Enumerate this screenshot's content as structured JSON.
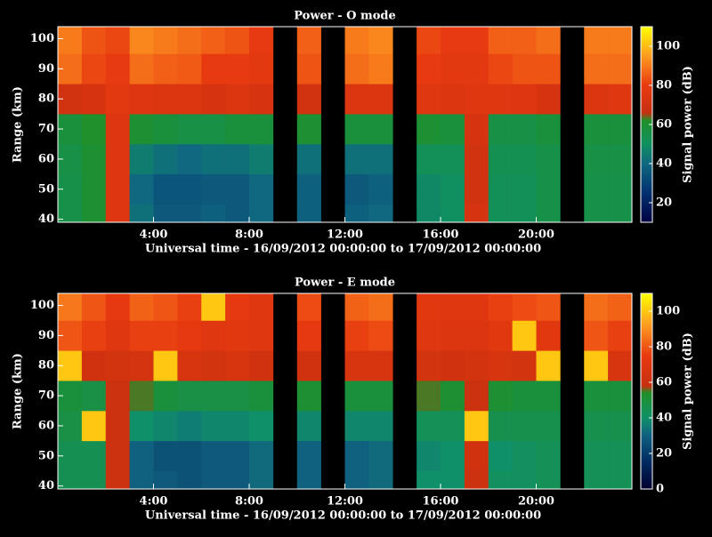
{
  "chart_data": [
    {
      "type": "heatmap",
      "title": "Power - O mode",
      "x_label": "Universal time - 16/09/2012 00:00:00 to 17/09/2012 00:00:00",
      "y_label": "Range (km)",
      "colorbar_label": "Signal power (dB)",
      "x_bins": [
        0,
        1,
        2,
        3,
        4,
        5,
        6,
        7,
        8,
        9,
        10,
        11,
        12,
        13,
        14,
        15,
        16,
        17,
        18,
        19,
        20,
        21,
        22,
        23,
        24
      ],
      "y_bins": [
        39,
        45,
        55,
        65,
        75,
        85,
        95,
        104
      ],
      "values": [
        [
          55,
          60,
          75,
          42,
          36,
          36,
          38,
          36,
          40,
          null,
          38,
          null,
          38,
          40,
          null,
          48,
          50,
          72,
          52,
          52,
          55,
          null,
          55,
          55
        ],
        [
          55,
          60,
          75,
          40,
          35,
          35,
          36,
          36,
          40,
          null,
          38,
          null,
          36,
          38,
          null,
          48,
          50,
          70,
          52,
          52,
          55,
          null,
          55,
          55
        ],
        [
          56,
          60,
          75,
          45,
          42,
          40,
          42,
          42,
          45,
          null,
          42,
          null,
          42,
          42,
          null,
          52,
          52,
          70,
          53,
          53,
          55,
          null,
          56,
          56
        ],
        [
          58,
          62,
          75,
          60,
          58,
          56,
          56,
          58,
          58,
          null,
          60,
          null,
          58,
          58,
          null,
          60,
          58,
          72,
          56,
          56,
          58,
          null,
          58,
          58
        ],
        [
          70,
          72,
          78,
          75,
          74,
          74,
          72,
          74,
          72,
          null,
          70,
          null,
          74,
          74,
          null,
          76,
          74,
          76,
          76,
          75,
          72,
          null,
          74,
          76
        ],
        [
          88,
          82,
          80,
          88,
          86,
          85,
          80,
          80,
          78,
          null,
          84,
          null,
          88,
          90,
          null,
          80,
          78,
          78,
          82,
          84,
          84,
          null,
          88,
          88
        ],
        [
          90,
          84,
          82,
          92,
          90,
          88,
          86,
          84,
          80,
          null,
          86,
          null,
          90,
          92,
          null,
          82,
          80,
          80,
          86,
          86,
          88,
          null,
          90,
          90
        ]
      ],
      "xlim": [
        0,
        24
      ],
      "xticks": [
        {
          "value": 4,
          "label": "4:00"
        },
        {
          "value": 8,
          "label": "8:00"
        },
        {
          "value": 12,
          "label": "12:00"
        },
        {
          "value": 16,
          "label": "16:00"
        },
        {
          "value": 20,
          "label": "20:00"
        }
      ],
      "ylim": [
        39,
        104
      ],
      "yticks": [
        40,
        50,
        60,
        70,
        80,
        90,
        100
      ],
      "clim": [
        10,
        110
      ],
      "cticks": [
        20,
        40,
        60,
        80,
        100
      ],
      "colorscale": [
        [
          10,
          "#000040"
        ],
        [
          25,
          "#003070"
        ],
        [
          40,
          "#106880"
        ],
        [
          50,
          "#109060"
        ],
        [
          62,
          "#20902a"
        ],
        [
          66,
          "#c83010"
        ],
        [
          80,
          "#e83a10"
        ],
        [
          95,
          "#ff9a20"
        ],
        [
          110,
          "#ffff00"
        ]
      ]
    },
    {
      "type": "heatmap",
      "title": "Power - E mode",
      "x_label": "Universal time - 16/09/2012 00:00:00 to 17/09/2012 00:00:00",
      "y_label": "Range (km)",
      "colorbar_label": "Signal power (dB)",
      "x_bins": [
        0,
        1,
        2,
        3,
        4,
        5,
        6,
        7,
        8,
        9,
        10,
        11,
        12,
        13,
        14,
        15,
        16,
        17,
        18,
        19,
        20,
        21,
        22,
        23,
        24
      ],
      "y_bins": [
        39,
        45,
        55,
        65,
        75,
        85,
        95,
        104
      ],
      "values": [
        [
          45,
          45,
          60,
          30,
          28,
          26,
          28,
          28,
          32,
          null,
          30,
          null,
          30,
          32,
          null,
          40,
          40,
          60,
          42,
          42,
          44,
          null,
          44,
          44
        ],
        [
          45,
          45,
          60,
          30,
          26,
          26,
          28,
          28,
          32,
          null,
          30,
          null,
          30,
          32,
          null,
          38,
          40,
          62,
          40,
          42,
          44,
          null,
          44,
          44
        ],
        [
          48,
          100,
          60,
          40,
          38,
          36,
          38,
          38,
          40,
          null,
          38,
          null,
          38,
          38,
          null,
          44,
          44,
          100,
          46,
          46,
          46,
          null,
          46,
          46
        ],
        [
          50,
          48,
          60,
          55,
          50,
          48,
          48,
          48,
          50,
          null,
          52,
          null,
          50,
          50,
          null,
          55,
          52,
          60,
          52,
          50,
          50,
          null,
          50,
          50
        ],
        [
          100,
          62,
          64,
          65,
          100,
          66,
          64,
          66,
          62,
          null,
          62,
          null,
          66,
          66,
          null,
          64,
          62,
          64,
          66,
          64,
          100,
          null,
          100,
          66
        ],
        [
          80,
          76,
          70,
          76,
          76,
          74,
          70,
          72,
          70,
          null,
          74,
          null,
          76,
          78,
          null,
          70,
          68,
          68,
          72,
          100,
          72,
          null,
          80,
          76
        ],
        [
          86,
          80,
          74,
          82,
          80,
          76,
          100,
          74,
          70,
          null,
          78,
          null,
          82,
          84,
          null,
          72,
          70,
          70,
          76,
          78,
          80,
          null,
          84,
          82
        ]
      ],
      "xlim": [
        0,
        24
      ],
      "xticks": [
        {
          "value": 4,
          "label": "4:00"
        },
        {
          "value": 8,
          "label": "8:00"
        },
        {
          "value": 12,
          "label": "12:00"
        },
        {
          "value": 16,
          "label": "16:00"
        },
        {
          "value": 20,
          "label": "20:00"
        }
      ],
      "ylim": [
        39,
        104
      ],
      "yticks": [
        40,
        50,
        60,
        70,
        80,
        90,
        100
      ],
      "clim": [
        0,
        110
      ],
      "cticks": [
        0,
        20,
        40,
        60,
        80,
        100
      ],
      "colorscale": [
        [
          0,
          "#000030"
        ],
        [
          15,
          "#002a60"
        ],
        [
          30,
          "#106080"
        ],
        [
          40,
          "#109068"
        ],
        [
          54,
          "#20902a"
        ],
        [
          58,
          "#c83010"
        ],
        [
          75,
          "#e83a10"
        ],
        [
          92,
          "#ff9a20"
        ],
        [
          110,
          "#ffff00"
        ]
      ]
    }
  ]
}
